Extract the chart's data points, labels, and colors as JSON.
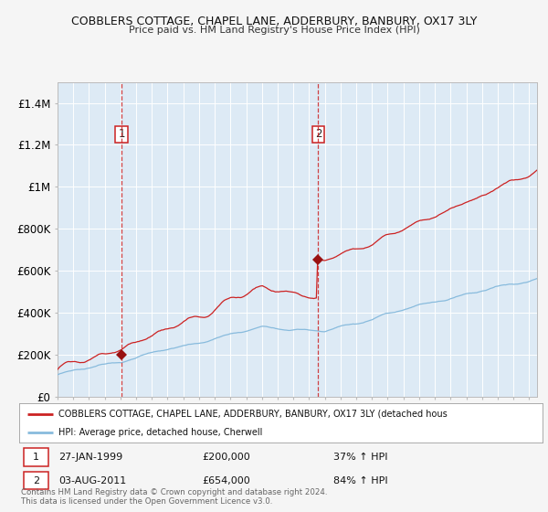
{
  "title": "COBBLERS COTTAGE, CHAPEL LANE, ADDERBURY, BANBURY, OX17 3LY",
  "subtitle": "Price paid vs. HM Land Registry's House Price Index (HPI)",
  "background_color": "#f5f5f5",
  "plot_bg_color": "#ddeaf5",
  "grid_color": "#ffffff",
  "ylim": [
    0,
    1500000
  ],
  "yticks": [
    0,
    200000,
    400000,
    600000,
    800000,
    1000000,
    1200000,
    1400000
  ],
  "ytick_labels": [
    "£0",
    "£200K",
    "£400K",
    "£600K",
    "£800K",
    "£1M",
    "£1.2M",
    "£1.4M"
  ],
  "xlim_start": 1995.0,
  "xlim_end": 2025.5,
  "sale1_date_num": 1999.07,
  "sale1_price": 200000,
  "sale1_label": "1",
  "sale2_date_num": 2011.58,
  "sale2_price": 654000,
  "sale2_label": "2",
  "legend_red_label": "COBBLERS COTTAGE, CHAPEL LANE, ADDERBURY, BANBURY, OX17 3LY (detached hous",
  "legend_blue_label": "HPI: Average price, detached house, Cherwell",
  "footer": "Contains HM Land Registry data © Crown copyright and database right 2024.\nThis data is licensed under the Open Government Licence v3.0.",
  "red_color": "#cc2222",
  "blue_color": "#88bbdd",
  "marker_color": "#991111",
  "ann1_date": "27-JAN-1999",
  "ann1_price": "£200,000",
  "ann1_hpi": "37% ↑ HPI",
  "ann2_date": "03-AUG-2011",
  "ann2_price": "£654,000",
  "ann2_hpi": "84% ↑ HPI"
}
